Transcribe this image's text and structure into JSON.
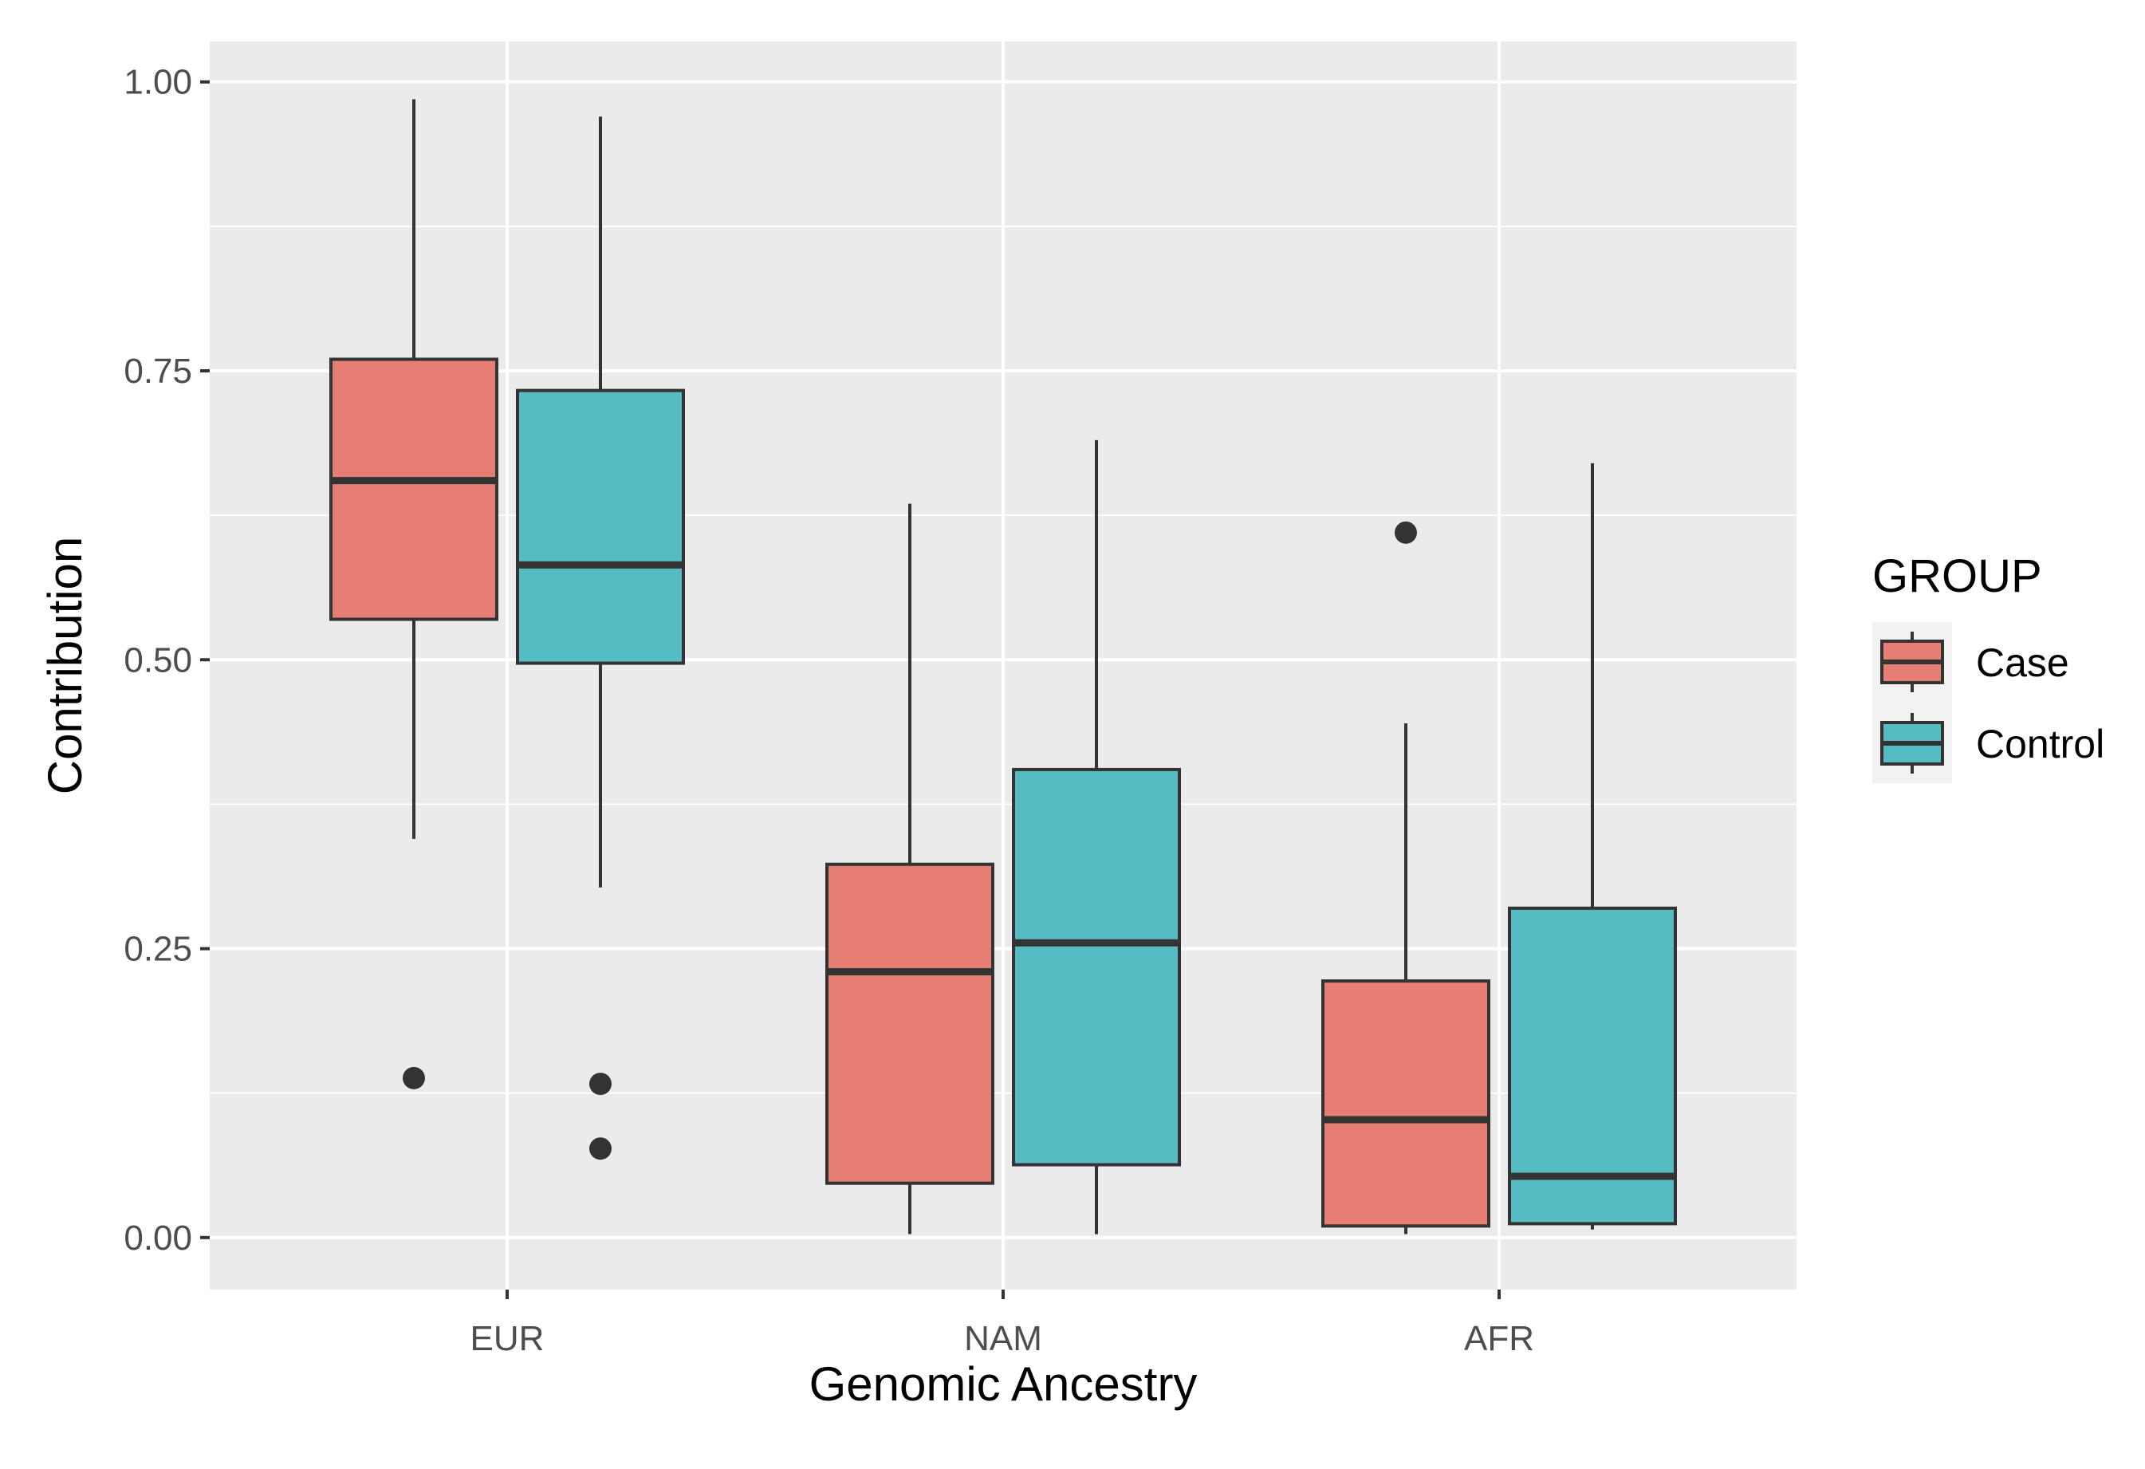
{
  "chart_data": {
    "type": "boxplot",
    "title": "",
    "xlabel": "Genomic Ancestry",
    "ylabel": "Contribution",
    "ylim": [
      -0.045,
      1.035
    ],
    "yticks": [
      0.0,
      0.25,
      0.5,
      0.75,
      1.0
    ],
    "ytick_labels": [
      "0.00",
      "0.25",
      "0.50",
      "0.75",
      "1.00"
    ],
    "categories": [
      "EUR",
      "NAM",
      "AFR"
    ],
    "grid": true,
    "legend": {
      "title": "GROUP",
      "position": "right"
    },
    "series": [
      {
        "name": "Case",
        "color": "#F8766D",
        "boxes": [
          {
            "category": "EUR",
            "whisker_low": 0.345,
            "q1": 0.535,
            "median": 0.655,
            "q3": 0.76,
            "whisker_high": 0.985,
            "outliers": [
              0.138
            ]
          },
          {
            "category": "NAM",
            "whisker_low": 0.003,
            "q1": 0.047,
            "median": 0.23,
            "q3": 0.323,
            "whisker_high": 0.635,
            "outliers": []
          },
          {
            "category": "AFR",
            "whisker_low": 0.003,
            "q1": 0.01,
            "median": 0.102,
            "q3": 0.222,
            "whisker_high": 0.445,
            "outliers": [
              0.61
            ]
          }
        ]
      },
      {
        "name": "Control",
        "color": "#00BFC4",
        "boxes": [
          {
            "category": "EUR",
            "whisker_low": 0.303,
            "q1": 0.497,
            "median": 0.582,
            "q3": 0.733,
            "whisker_high": 0.97,
            "outliers": [
              0.133,
              0.077
            ]
          },
          {
            "category": "NAM",
            "whisker_low": 0.003,
            "q1": 0.063,
            "median": 0.255,
            "q3": 0.405,
            "whisker_high": 0.69,
            "outliers": []
          },
          {
            "category": "AFR",
            "whisker_low": 0.007,
            "q1": 0.012,
            "median": 0.053,
            "q3": 0.285,
            "whisker_high": 0.67,
            "outliers": []
          }
        ]
      }
    ]
  },
  "colors": {
    "panel_background": "#EBEBEB",
    "grid_major": "#FFFFFF",
    "box_outline": "#333333",
    "case_fill": "#E67E73",
    "control_fill": "#54BCC2"
  }
}
